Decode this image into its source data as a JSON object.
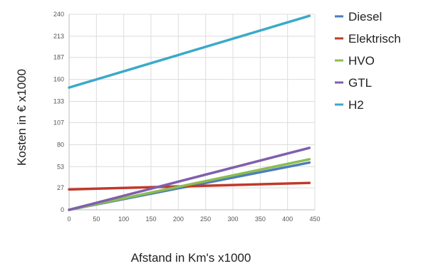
{
  "chart_data": {
    "type": "line",
    "xlabel": "Afstand in Km's x1000",
    "ylabel": "Kosten in € x1000",
    "xlim": [
      0,
      450
    ],
    "ylim": [
      0,
      240
    ],
    "x_ticks": [
      "0",
      "50",
      "100",
      "150",
      "200",
      "250",
      "300",
      "350",
      "400",
      "450"
    ],
    "y_ticks": [
      "0",
      "27",
      "53",
      "80",
      "107",
      "133",
      "160",
      "187",
      "213",
      "240"
    ],
    "grid": true,
    "legend_position": "right",
    "series": [
      {
        "name": "Diesel",
        "color": "#4a7ebb",
        "x": [
          0,
          440
        ],
        "y": [
          0,
          58
        ]
      },
      {
        "name": "Elektrisch",
        "color": "#c0392b",
        "x": [
          0,
          440
        ],
        "y": [
          25,
          33
        ]
      },
      {
        "name": "HVO",
        "color": "#8cbc4f",
        "x": [
          0,
          440
        ],
        "y": [
          0,
          62
        ]
      },
      {
        "name": "GTL",
        "color": "#7f5fad",
        "x": [
          0,
          440
        ],
        "y": [
          0,
          76
        ]
      },
      {
        "name": "H2",
        "color": "#3aa9c9",
        "x": [
          0,
          440
        ],
        "y": [
          150,
          238
        ]
      }
    ]
  }
}
